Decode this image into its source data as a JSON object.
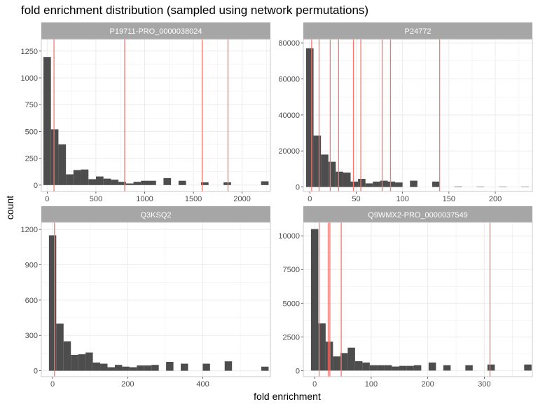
{
  "chart_data": {
    "type": "histogram-facets",
    "title": "fold enrichment distribution (sampled using network permutations)",
    "xlabel": "fold enrichment",
    "ylabel": "count",
    "colors": {
      "bar": "#4d4d4d",
      "vline": "#f8766d",
      "strip": "#a6a6a6",
      "grid": "#ebebeb",
      "panel_border": "#c8c8c8"
    },
    "panels": [
      {
        "name": "P19711-PRO_0000038024",
        "xlim": [
          -60,
          2290
        ],
        "ylim": [
          -60,
          1360
        ],
        "xticks": [
          0,
          500,
          1000,
          1500,
          2000
        ],
        "yticks": [
          0,
          250,
          500,
          750,
          1000,
          1250
        ],
        "bin_width": 77,
        "bins": [
          {
            "x": 0,
            "count": 1195
          },
          {
            "x": 77,
            "count": 520
          },
          {
            "x": 154,
            "count": 380
          },
          {
            "x": 231,
            "count": 100
          },
          {
            "x": 308,
            "count": 140
          },
          {
            "x": 385,
            "count": 145
          },
          {
            "x": 462,
            "count": 55
          },
          {
            "x": 539,
            "count": 80
          },
          {
            "x": 616,
            "count": 60
          },
          {
            "x": 693,
            "count": 50
          },
          {
            "x": 770,
            "count": 30
          },
          {
            "x": 847,
            "count": 15
          },
          {
            "x": 924,
            "count": 30
          },
          {
            "x": 1001,
            "count": 40
          },
          {
            "x": 1078,
            "count": 40
          },
          {
            "x": 1232,
            "count": 65
          },
          {
            "x": 1386,
            "count": 40
          },
          {
            "x": 1617,
            "count": 25
          },
          {
            "x": 1848,
            "count": 25
          },
          {
            "x": 2233,
            "count": 35
          }
        ],
        "vlines": [
          70,
          795,
          1590,
          1855
        ]
      },
      {
        "name": "P24772",
        "xlim": [
          -7,
          240
        ],
        "ylim": [
          -2500,
          82000
        ],
        "xticks": [
          0,
          50,
          100,
          150,
          200
        ],
        "yticks": [
          0,
          20000,
          40000,
          60000,
          80000
        ],
        "bin_width": 8,
        "bins": [
          {
            "x": 0,
            "count": 77000
          },
          {
            "x": 8,
            "count": 28500
          },
          {
            "x": 16,
            "count": 18000
          },
          {
            "x": 24,
            "count": 14000
          },
          {
            "x": 32,
            "count": 8500
          },
          {
            "x": 40,
            "count": 8000
          },
          {
            "x": 48,
            "count": 3000
          },
          {
            "x": 56,
            "count": 4500
          },
          {
            "x": 64,
            "count": 2000
          },
          {
            "x": 72,
            "count": 3000
          },
          {
            "x": 80,
            "count": 3500
          },
          {
            "x": 88,
            "count": 3000
          },
          {
            "x": 96,
            "count": 2500
          },
          {
            "x": 112,
            "count": 3500
          },
          {
            "x": 136,
            "count": 3000
          },
          {
            "x": 160,
            "count": 250
          },
          {
            "x": 184,
            "count": 200
          },
          {
            "x": 208,
            "count": 150
          },
          {
            "x": 232,
            "count": 150
          }
        ],
        "vlines": [
          2,
          10,
          22,
          31,
          47,
          55,
          78,
          87,
          140
        ]
      },
      {
        "name": "Q3KSQ2",
        "xlim": [
          -30,
          580
        ],
        "ylim": [
          -50,
          1260
        ],
        "xticks": [
          0,
          200,
          400
        ],
        "yticks": [
          0,
          300,
          600,
          900,
          1200
        ],
        "bin_width": 19.5,
        "bins": [
          {
            "x": 0,
            "count": 1150
          },
          {
            "x": 19.5,
            "count": 400
          },
          {
            "x": 39,
            "count": 250
          },
          {
            "x": 58.5,
            "count": 135
          },
          {
            "x": 78,
            "count": 140
          },
          {
            "x": 97.5,
            "count": 155
          },
          {
            "x": 117,
            "count": 70
          },
          {
            "x": 136.5,
            "count": 60
          },
          {
            "x": 156,
            "count": 30
          },
          {
            "x": 175.5,
            "count": 50
          },
          {
            "x": 195,
            "count": 35
          },
          {
            "x": 214.5,
            "count": 30
          },
          {
            "x": 234,
            "count": 45
          },
          {
            "x": 253.5,
            "count": 45
          },
          {
            "x": 273,
            "count": 50
          },
          {
            "x": 312,
            "count": 75
          },
          {
            "x": 351,
            "count": 60
          },
          {
            "x": 409.5,
            "count": 60
          },
          {
            "x": 468,
            "count": 80
          },
          {
            "x": 565.5,
            "count": 35
          }
        ],
        "vlines": [
          5
        ]
      },
      {
        "name": "Q9WMX2-PRO_0000037549",
        "xlim": [
          -20,
          385
        ],
        "ylim": [
          -450,
          11000
        ],
        "xticks": [
          0,
          100,
          200,
          300
        ],
        "yticks": [
          0,
          2500,
          5000,
          7500,
          10000
        ],
        "bin_width": 13,
        "bins": [
          {
            "x": 0,
            "count": 10500
          },
          {
            "x": 13,
            "count": 3500
          },
          {
            "x": 26,
            "count": 2150
          },
          {
            "x": 39,
            "count": 1050
          },
          {
            "x": 52,
            "count": 1300
          },
          {
            "x": 65,
            "count": 1700
          },
          {
            "x": 78,
            "count": 700
          },
          {
            "x": 91,
            "count": 600
          },
          {
            "x": 104,
            "count": 400
          },
          {
            "x": 117,
            "count": 400
          },
          {
            "x": 130,
            "count": 400
          },
          {
            "x": 143,
            "count": 300
          },
          {
            "x": 156,
            "count": 350
          },
          {
            "x": 169,
            "count": 350
          },
          {
            "x": 182,
            "count": 400
          },
          {
            "x": 208,
            "count": 600
          },
          {
            "x": 234,
            "count": 400
          },
          {
            "x": 273,
            "count": 400
          },
          {
            "x": 312,
            "count": 450
          },
          {
            "x": 377,
            "count": 450
          }
        ],
        "vlines": [
          8,
          24,
          27,
          47,
          310
        ]
      }
    ]
  }
}
